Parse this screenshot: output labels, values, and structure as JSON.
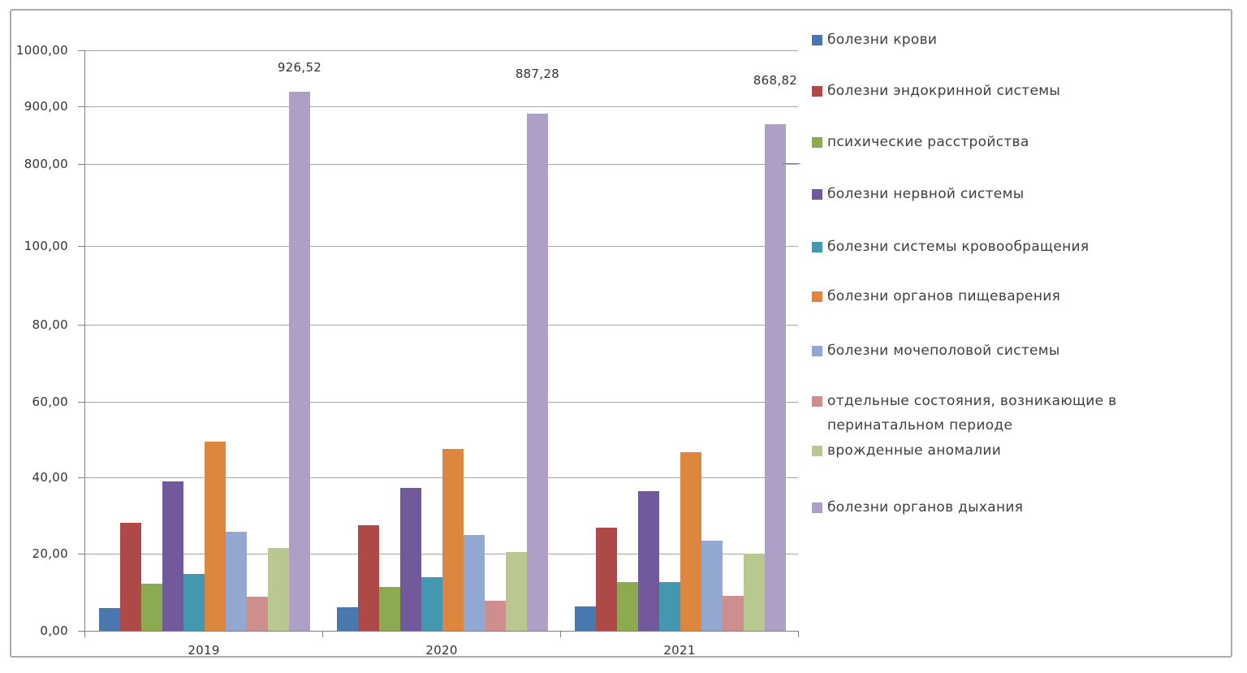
{
  "chart_data": {
    "type": "bar",
    "title": "",
    "categories": [
      "2019",
      "2020",
      "2021"
    ],
    "series": [
      {
        "name": "болезни крови",
        "color": "#4878ae",
        "values": [
          5.9,
          6.1,
          6.3
        ]
      },
      {
        "name": "болезни эндокринной системы",
        "color": "#ad4a47",
        "values": [
          28.1,
          27.5,
          26.9
        ]
      },
      {
        "name": "психические расстройства",
        "color": "#8caa4f",
        "values": [
          12.2,
          11.4,
          12.6
        ]
      },
      {
        "name": "болезни нервной системы",
        "color": "#71599c",
        "values": [
          38.9,
          37.3,
          36.4
        ]
      },
      {
        "name": "болезни системы кровообращения",
        "color": "#4398b0",
        "values": [
          14.8,
          14.0,
          12.7
        ]
      },
      {
        "name": "болезни органов пищеварения",
        "color": "#dd8640",
        "values": [
          49.4,
          47.5,
          46.6
        ]
      },
      {
        "name": "болезни мочеполовой системы",
        "color": "#92a8d1",
        "values": [
          25.8,
          24.9,
          23.4
        ]
      },
      {
        "name": "отдельные состояния, возникающие в перинатальном периоде",
        "color": "#cf8e8e",
        "values": [
          8.9,
          7.8,
          9.0
        ]
      },
      {
        "name": "врожденные аномалии",
        "color": "#b9c891",
        "values": [
          21.5,
          20.5,
          20.1
        ]
      },
      {
        "name": "болезни органов дыхания",
        "color": "#ae9fc6",
        "values": [
          926.52,
          887.28,
          868.82
        ]
      }
    ],
    "data_labels": {
      "series": "болезни органов дыхания",
      "values": [
        "926,52",
        "887,28",
        "868,82"
      ]
    },
    "y_axis": {
      "tick_labels": [
        "0,00",
        "20,00",
        "40,00",
        "60,00",
        "80,00",
        "100,00",
        "800,00",
        "900,00",
        "1000,00"
      ],
      "tick_values": [
        0,
        20,
        40,
        60,
        80,
        100,
        800,
        900,
        1000
      ],
      "scale": "broken non-linear: 0–100 step 20, then 800–1000 step 100"
    },
    "legend_position": "right",
    "grid": true,
    "style": {
      "grid_color": "#a6a6a6",
      "axis_color": "#808080",
      "text_color": "#333333",
      "frame_border_color": "#ababab",
      "background": "#ffffff"
    }
  }
}
